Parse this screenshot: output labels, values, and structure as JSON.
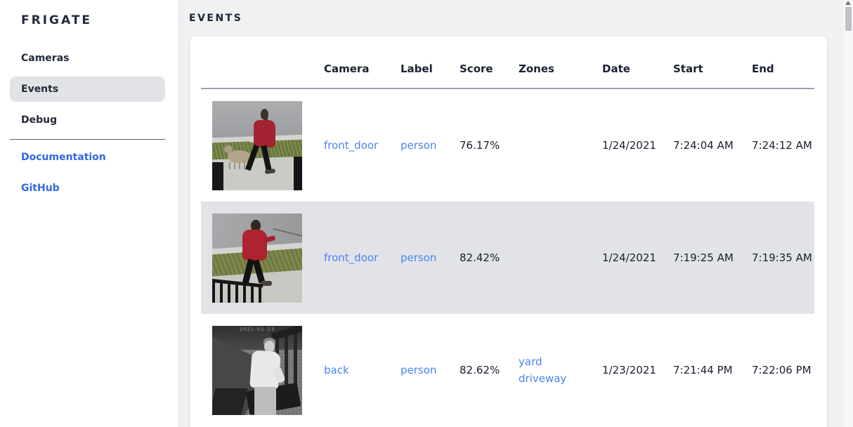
{
  "app": {
    "brand": "FRIGATE"
  },
  "sidebar": {
    "items": [
      {
        "label": "Cameras",
        "selected": false
      },
      {
        "label": "Events",
        "selected": true
      },
      {
        "label": "Debug",
        "selected": false
      }
    ],
    "links": [
      {
        "label": "Documentation"
      },
      {
        "label": "GitHub"
      }
    ]
  },
  "header": {
    "title": "EVENTS"
  },
  "table": {
    "columns": [
      "Camera",
      "Label",
      "Score",
      "Zones",
      "Date",
      "Start",
      "End"
    ],
    "rows": [
      {
        "camera": "front_door",
        "label": "person",
        "score": "76.17%",
        "zones": [],
        "date": "1/24/2021",
        "start": "7:24:04 AM",
        "end": "7:24:12 AM",
        "thumbnail": "person in red coat walking small dog on sidewalk",
        "selected": false
      },
      {
        "camera": "front_door",
        "label": "person",
        "score": "82.42%",
        "zones": [],
        "date": "1/24/2021",
        "start": "7:19:25 AM",
        "end": "7:19:35 AM",
        "thumbnail": "person in red hoodie walking dog past black railing",
        "selected": true
      },
      {
        "camera": "back",
        "label": "person",
        "score": "82.62%",
        "zones": [
          "yard",
          "driveway"
        ],
        "date": "1/23/2021",
        "start": "7:21:44 PM",
        "end": "7:22:06 PM",
        "thumbnail": "night infrared view of person in white long-sleeve shirt",
        "thumbnail_timestamp": "2021-01-23",
        "selected": false
      }
    ]
  },
  "colors": {
    "sidebar_link_blue": "#3368e3",
    "table_link_blue": "#4a84f0",
    "selected_row_bg": "#e2e3e7",
    "selected_nav_bg": "#e2e3e6",
    "dark_text": "#1e2533",
    "page_bg": "#f0f1f3",
    "header_underline": "#9aa2ae"
  }
}
